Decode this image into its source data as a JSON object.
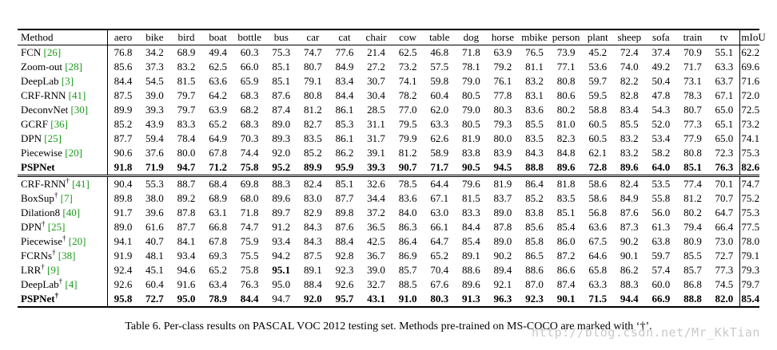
{
  "table": {
    "header": [
      "Method",
      "aero",
      "bike",
      "bird",
      "boat",
      "bottle",
      "bus",
      "car",
      "cat",
      "chair",
      "cow",
      "table",
      "dog",
      "horse",
      "mbike",
      "person",
      "plant",
      "sheep",
      "sofa",
      "train",
      "tv",
      "mIoU"
    ],
    "section1": [
      {
        "name": "FCN",
        "ref": "26",
        "dagger": false,
        "bold": false,
        "values": [
          "76.8",
          "34.2",
          "68.9",
          "49.4",
          "60.3",
          "75.3",
          "74.7",
          "77.6",
          "21.4",
          "62.5",
          "46.8",
          "71.8",
          "63.9",
          "76.5",
          "73.9",
          "45.2",
          "72.4",
          "37.4",
          "70.9",
          "55.1",
          "62.2"
        ]
      },
      {
        "name": "Zoom-out",
        "ref": "28",
        "dagger": false,
        "bold": false,
        "values": [
          "85.6",
          "37.3",
          "83.2",
          "62.5",
          "66.0",
          "85.1",
          "80.7",
          "84.9",
          "27.2",
          "73.2",
          "57.5",
          "78.1",
          "79.2",
          "81.1",
          "77.1",
          "53.6",
          "74.0",
          "49.2",
          "71.7",
          "63.3",
          "69.6"
        ]
      },
      {
        "name": "DeepLab",
        "ref": "3",
        "dagger": false,
        "bold": false,
        "values": [
          "84.4",
          "54.5",
          "81.5",
          "63.6",
          "65.9",
          "85.1",
          "79.1",
          "83.4",
          "30.7",
          "74.1",
          "59.8",
          "79.0",
          "76.1",
          "83.2",
          "80.8",
          "59.7",
          "82.2",
          "50.4",
          "73.1",
          "63.7",
          "71.6"
        ]
      },
      {
        "name": "CRF-RNN",
        "ref": "41",
        "dagger": false,
        "bold": false,
        "values": [
          "87.5",
          "39.0",
          "79.7",
          "64.2",
          "68.3",
          "87.6",
          "80.8",
          "84.4",
          "30.4",
          "78.2",
          "60.4",
          "80.5",
          "77.8",
          "83.1",
          "80.6",
          "59.5",
          "82.8",
          "47.8",
          "78.3",
          "67.1",
          "72.0"
        ]
      },
      {
        "name": "DeconvNet",
        "ref": "30",
        "dagger": false,
        "bold": false,
        "values": [
          "89.9",
          "39.3",
          "79.7",
          "63.9",
          "68.2",
          "87.4",
          "81.2",
          "86.1",
          "28.5",
          "77.0",
          "62.0",
          "79.0",
          "80.3",
          "83.6",
          "80.2",
          "58.8",
          "83.4",
          "54.3",
          "80.7",
          "65.0",
          "72.5"
        ]
      },
      {
        "name": "GCRF",
        "ref": "36",
        "dagger": false,
        "bold": false,
        "values": [
          "85.2",
          "43.9",
          "83.3",
          "65.2",
          "68.3",
          "89.0",
          "82.7",
          "85.3",
          "31.1",
          "79.5",
          "63.3",
          "80.5",
          "79.3",
          "85.5",
          "81.0",
          "60.5",
          "85.5",
          "52.0",
          "77.3",
          "65.1",
          "73.2"
        ]
      },
      {
        "name": "DPN",
        "ref": "25",
        "dagger": false,
        "bold": false,
        "values": [
          "87.7",
          "59.4",
          "78.4",
          "64.9",
          "70.3",
          "89.3",
          "83.5",
          "86.1",
          "31.7",
          "79.9",
          "62.6",
          "81.9",
          "80.0",
          "83.5",
          "82.3",
          "60.5",
          "83.2",
          "53.4",
          "77.9",
          "65.0",
          "74.1"
        ]
      },
      {
        "name": "Piecewise",
        "ref": "20",
        "dagger": false,
        "bold": false,
        "values": [
          "90.6",
          "37.6",
          "80.0",
          "67.8",
          "74.4",
          "92.0",
          "85.2",
          "86.2",
          "39.1",
          "81.2",
          "58.9",
          "83.8",
          "83.9",
          "84.3",
          "84.8",
          "62.1",
          "83.2",
          "58.2",
          "80.8",
          "72.3",
          "75.3"
        ]
      },
      {
        "name": "PSPNet",
        "ref": "",
        "dagger": false,
        "bold": true,
        "values": [
          "91.8",
          "71.9",
          "94.7",
          "71.2",
          "75.8",
          "95.2",
          "89.9",
          "95.9",
          "39.3",
          "90.7",
          "71.7",
          "90.5",
          "94.5",
          "88.8",
          "89.6",
          "72.8",
          "89.6",
          "64.0",
          "85.1",
          "76.3",
          "82.6"
        ]
      }
    ],
    "section2": [
      {
        "name": "CRF-RNN",
        "ref": "41",
        "dagger": true,
        "bold": false,
        "values": [
          "90.4",
          "55.3",
          "88.7",
          "68.4",
          "69.8",
          "88.3",
          "82.4",
          "85.1",
          "32.6",
          "78.5",
          "64.4",
          "79.6",
          "81.9",
          "86.4",
          "81.8",
          "58.6",
          "82.4",
          "53.5",
          "77.4",
          "70.1",
          "74.7"
        ]
      },
      {
        "name": "BoxSup",
        "ref": "7",
        "dagger": true,
        "bold": false,
        "values": [
          "89.8",
          "38.0",
          "89.2",
          "68.9",
          "68.0",
          "89.6",
          "83.0",
          "87.7",
          "34.4",
          "83.6",
          "67.1",
          "81.5",
          "83.7",
          "85.2",
          "83.5",
          "58.6",
          "84.9",
          "55.8",
          "81.2",
          "70.7",
          "75.2"
        ]
      },
      {
        "name": "Dilation8",
        "ref": "40",
        "dagger": false,
        "bold": false,
        "values": [
          "91.7",
          "39.6",
          "87.8",
          "63.1",
          "71.8",
          "89.7",
          "82.9",
          "89.8",
          "37.2",
          "84.0",
          "63.0",
          "83.3",
          "89.0",
          "83.8",
          "85.1",
          "56.8",
          "87.6",
          "56.0",
          "80.2",
          "64.7",
          "75.3"
        ]
      },
      {
        "name": "DPN",
        "ref": "25",
        "dagger": true,
        "bold": false,
        "values": [
          "89.0",
          "61.6",
          "87.7",
          "66.8",
          "74.7",
          "91.2",
          "84.3",
          "87.6",
          "36.5",
          "86.3",
          "66.1",
          "84.4",
          "87.8",
          "85.6",
          "85.4",
          "63.6",
          "87.3",
          "61.3",
          "79.4",
          "66.4",
          "77.5"
        ]
      },
      {
        "name": "Piecewise",
        "ref": "20",
        "dagger": true,
        "bold": false,
        "values": [
          "94.1",
          "40.7",
          "84.1",
          "67.8",
          "75.9",
          "93.4",
          "84.3",
          "88.4",
          "42.5",
          "86.4",
          "64.7",
          "85.4",
          "89.0",
          "85.8",
          "86.0",
          "67.5",
          "90.2",
          "63.8",
          "80.9",
          "73.0",
          "78.0"
        ]
      },
      {
        "name": "FCRNs",
        "ref": "38",
        "dagger": true,
        "bold": false,
        "values": [
          "91.9",
          "48.1",
          "93.4",
          "69.3",
          "75.5",
          "94.2",
          "87.5",
          "92.8",
          "36.7",
          "86.9",
          "65.2",
          "89.1",
          "90.2",
          "86.5",
          "87.2",
          "64.6",
          "90.1",
          "59.7",
          "85.5",
          "72.7",
          "79.1"
        ]
      },
      {
        "name": "LRR",
        "ref": "9",
        "dagger": true,
        "bold": false,
        "values": [
          "92.4",
          "45.1",
          "94.6",
          "65.2",
          "75.8",
          "95.1",
          "89.1",
          "92.3",
          "39.0",
          "85.7",
          "70.4",
          "88.6",
          "89.4",
          "88.6",
          "86.6",
          "65.8",
          "86.2",
          "57.4",
          "85.7",
          "77.3",
          "79.3"
        ]
      },
      {
        "name": "DeepLab",
        "ref": "4",
        "dagger": true,
        "bold": false,
        "values": [
          "92.6",
          "60.4",
          "91.6",
          "63.4",
          "76.3",
          "95.0",
          "88.4",
          "92.6",
          "32.7",
          "88.5",
          "67.6",
          "89.6",
          "92.1",
          "87.0",
          "87.4",
          "63.3",
          "88.3",
          "60.0",
          "86.8",
          "74.5",
          "79.7"
        ]
      },
      {
        "name": "PSPNet",
        "ref": "",
        "dagger": true,
        "bold": true,
        "values": [
          "95.8",
          "72.7",
          "95.0",
          "78.9",
          "84.4",
          "94.7",
          "92.0",
          "95.7",
          "43.1",
          "91.0",
          "80.3",
          "91.3",
          "96.3",
          "92.3",
          "90.1",
          "71.5",
          "94.4",
          "66.9",
          "88.8",
          "82.0",
          "85.4"
        ]
      }
    ],
    "bold_cells_section2": [
      [
        "LRR",
        5
      ]
    ]
  },
  "caption": "Table 6. Per-class results on PASCAL VOC 2012 testing set. Methods pre-trained on MS-COCO are marked with ‘†’.",
  "watermark": "http://blog.csdn.net/Mr_KkTian",
  "colors": {
    "reference": "#1a9a1a",
    "watermark": "#c9c9c9"
  }
}
